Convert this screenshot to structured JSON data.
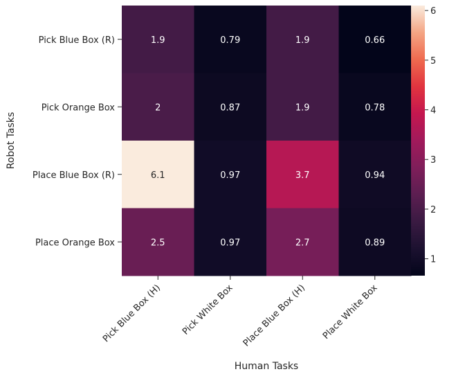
{
  "chart_data": {
    "type": "heatmap",
    "xlabel": "Human Tasks",
    "ylabel": "Robot Tasks",
    "x_categories": [
      "Pick Blue Box (H)",
      "Pick White Box",
      "Place Blue Box (H)",
      "Place White Box"
    ],
    "y_categories": [
      "Pick Blue Box (R)",
      "Pick Orange Box",
      "Place Blue Box (R)",
      "Place Orange Box"
    ],
    "values": [
      [
        1.9,
        0.79,
        1.9,
        0.66
      ],
      [
        2,
        0.87,
        1.9,
        0.78
      ],
      [
        6.1,
        0.97,
        3.7,
        0.94
      ],
      [
        2.5,
        0.97,
        2.7,
        0.89
      ]
    ],
    "value_labels": [
      [
        "1.9",
        "0.79",
        "1.9",
        "0.66"
      ],
      [
        "2",
        "0.87",
        "1.9",
        "0.78"
      ],
      [
        "6.1",
        "0.97",
        "3.7",
        "0.94"
      ],
      [
        "2.5",
        "0.97",
        "2.7",
        "0.89"
      ]
    ],
    "colorbar": {
      "min": 0.66,
      "max": 6.1,
      "ticks": [
        1,
        2,
        3,
        4,
        5,
        6
      ],
      "colormap": "rocket"
    }
  }
}
